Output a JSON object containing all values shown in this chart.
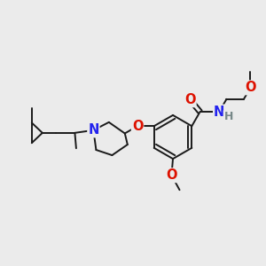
{
  "background_color": "#ebebeb",
  "bond_color": "#1a1a1a",
  "bond_width": 1.4,
  "atom_colors": {
    "O": "#dd1100",
    "N": "#2222ee",
    "H": "#778888",
    "C": "#1a1a1a"
  },
  "font_size": 9.5
}
